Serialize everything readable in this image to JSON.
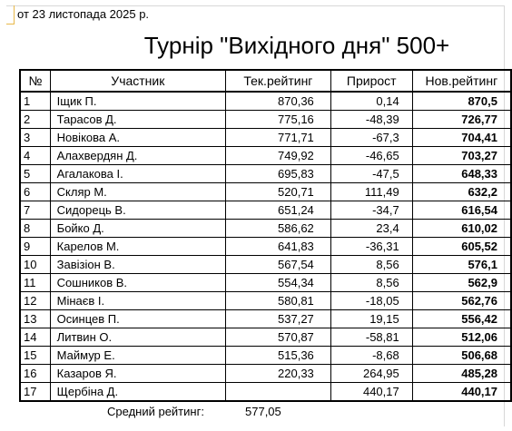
{
  "report": {
    "date": "от 23 листопада 2025 р.",
    "title": "Турнір \"Вихідного дня\" 500+"
  },
  "table": {
    "headers": {
      "no": "№",
      "name": "Участник",
      "current_rating": "Тек.рейтинг",
      "delta": "Прирост",
      "new_rating": "Нов.рейтинг"
    },
    "rows": [
      {
        "no": "1",
        "name": "Іщик П.",
        "current_rating": "870,36",
        "delta": "0,14",
        "new_rating": "870,5"
      },
      {
        "no": "2",
        "name": "Тарасов Д.",
        "current_rating": "775,16",
        "delta": "-48,39",
        "new_rating": "726,77"
      },
      {
        "no": "3",
        "name": "Новікова А.",
        "current_rating": "771,71",
        "delta": "-67,3",
        "new_rating": "704,41"
      },
      {
        "no": "4",
        "name": "Алахвердян Д.",
        "current_rating": "749,92",
        "delta": "-46,65",
        "new_rating": "703,27"
      },
      {
        "no": "5",
        "name": "Агалакова І.",
        "current_rating": "695,83",
        "delta": "-47,5",
        "new_rating": "648,33"
      },
      {
        "no": "6",
        "name": "Скляр М.",
        "current_rating": "520,71",
        "delta": "111,49",
        "new_rating": "632,2"
      },
      {
        "no": "7",
        "name": "Сидорець В.",
        "current_rating": "651,24",
        "delta": "-34,7",
        "new_rating": "616,54"
      },
      {
        "no": "8",
        "name": "Бойко Д.",
        "current_rating": "586,62",
        "delta": "23,4",
        "new_rating": "610,02"
      },
      {
        "no": "9",
        "name": "Карелов М.",
        "current_rating": "641,83",
        "delta": "-36,31",
        "new_rating": "605,52"
      },
      {
        "no": "10",
        "name": "Завізіон В.",
        "current_rating": "567,54",
        "delta": "8,56",
        "new_rating": "576,1"
      },
      {
        "no": "11",
        "name": "Сошников В.",
        "current_rating": "554,34",
        "delta": "8,56",
        "new_rating": "562,9"
      },
      {
        "no": "12",
        "name": "Мінаєв І.",
        "current_rating": "580,81",
        "delta": "-18,05",
        "new_rating": "562,76"
      },
      {
        "no": "13",
        "name": "Осинцев П.",
        "current_rating": "537,27",
        "delta": "19,15",
        "new_rating": "556,42"
      },
      {
        "no": "14",
        "name": "Литвин О.",
        "current_rating": "570,87",
        "delta": "-58,81",
        "new_rating": "512,06"
      },
      {
        "no": "15",
        "name": "Маймур Е.",
        "current_rating": "515,36",
        "delta": "-8,68",
        "new_rating": "506,68"
      },
      {
        "no": "16",
        "name": "Казаров Я.",
        "current_rating": "220,33",
        "delta": "264,95",
        "new_rating": "485,28"
      },
      {
        "no": "17",
        "name": "Щербіна Д.",
        "current_rating": "",
        "delta": "440,17",
        "new_rating": "440,17"
      }
    ]
  },
  "summary": {
    "average_label": "Средний рейтинг:",
    "average_value": "577,05"
  }
}
